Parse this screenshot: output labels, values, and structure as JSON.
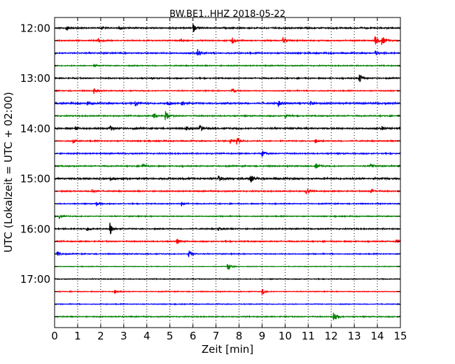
{
  "chart_data": {
    "type": "line",
    "title": "BW.BE1..HHZ 2018-05-22",
    "xlabel": "Zeit  [min]",
    "ylabel": "UTC (Lokalzeit = UTC + 02:00)",
    "xlim": [
      0,
      15
    ],
    "xticks": [
      "0",
      "1",
      "2",
      "3",
      "4",
      "5",
      "6",
      "7",
      "8",
      "9",
      "10",
      "11",
      "12",
      "13",
      "14",
      "15"
    ],
    "ytick_labels": [
      "12:00",
      "13:00",
      "14:00",
      "15:00",
      "16:00",
      "17:00"
    ],
    "grid": {
      "vertical_dotted": true,
      "every_minutes": 1
    },
    "colors": [
      "#000000",
      "#ff0000",
      "#0000ff",
      "#008000"
    ],
    "traces": [
      {
        "start": "12:00",
        "color": "#000000",
        "noise": 0.7,
        "events": [
          {
            "t": 0.5,
            "amp": 3
          },
          {
            "t": 2.0,
            "amp": 2.5
          },
          {
            "t": 2.8,
            "amp": 2.5
          },
          {
            "t": 6.0,
            "amp": 6
          }
        ]
      },
      {
        "start": "12:15",
        "color": "#ff0000",
        "noise": 0.6,
        "events": [
          {
            "t": 1.9,
            "amp": 4
          },
          {
            "t": 5.5,
            "amp": 3
          },
          {
            "t": 7.7,
            "amp": 5
          },
          {
            "t": 9.9,
            "amp": 5
          },
          {
            "t": 13.9,
            "amp": 7
          },
          {
            "t": 14.2,
            "amp": 7
          }
        ]
      },
      {
        "start": "12:30",
        "color": "#0000ff",
        "noise": 0.7,
        "events": [
          {
            "t": 6.2,
            "amp": 6
          },
          {
            "t": 13.9,
            "amp": 4
          }
        ]
      },
      {
        "start": "12:45",
        "color": "#008000",
        "noise": 0.5,
        "events": [
          {
            "t": 1.7,
            "amp": 2
          }
        ]
      },
      {
        "start": "13:00",
        "color": "#000000",
        "noise": 0.6,
        "events": [
          {
            "t": 13.2,
            "amp": 8
          }
        ]
      },
      {
        "start": "13:15",
        "color": "#ff0000",
        "noise": 0.5,
        "events": [
          {
            "t": 1.7,
            "amp": 5
          },
          {
            "t": 7.7,
            "amp": 4
          }
        ]
      },
      {
        "start": "13:30",
        "color": "#0000ff",
        "noise": 0.8,
        "events": [
          {
            "t": 1.4,
            "amp": 3
          },
          {
            "t": 3.5,
            "amp": 5
          },
          {
            "t": 4.9,
            "amp": 5
          },
          {
            "t": 5.5,
            "amp": 4
          },
          {
            "t": 9.7,
            "amp": 4
          },
          {
            "t": 11.1,
            "amp": 4
          }
        ]
      },
      {
        "start": "13:45",
        "color": "#008000",
        "noise": 0.6,
        "events": [
          {
            "t": 4.3,
            "amp": 4
          },
          {
            "t": 4.8,
            "amp": 8
          },
          {
            "t": 10.0,
            "amp": 3
          }
        ]
      },
      {
        "start": "14:00",
        "color": "#000000",
        "noise": 0.8,
        "events": [
          {
            "t": 0.9,
            "amp": 3
          },
          {
            "t": 2.4,
            "amp": 4
          },
          {
            "t": 5.7,
            "amp": 3
          },
          {
            "t": 6.3,
            "amp": 6
          },
          {
            "t": 14.2,
            "amp": 3
          }
        ]
      },
      {
        "start": "14:15",
        "color": "#ff0000",
        "noise": 0.6,
        "events": [
          {
            "t": 0.8,
            "amp": 3
          },
          {
            "t": 7.6,
            "amp": 4
          },
          {
            "t": 7.9,
            "amp": 6
          },
          {
            "t": 11.3,
            "amp": 3
          }
        ]
      },
      {
        "start": "14:30",
        "color": "#0000ff",
        "noise": 0.6,
        "events": [
          {
            "t": 9.0,
            "amp": 5
          }
        ]
      },
      {
        "start": "14:45",
        "color": "#008000",
        "noise": 0.6,
        "events": [
          {
            "t": 3.8,
            "amp": 3
          },
          {
            "t": 11.3,
            "amp": 5
          },
          {
            "t": 13.7,
            "amp": 4
          }
        ]
      },
      {
        "start": "15:00",
        "color": "#000000",
        "noise": 0.9,
        "events": [
          {
            "t": 2.4,
            "amp": 3
          },
          {
            "t": 7.1,
            "amp": 4
          },
          {
            "t": 8.5,
            "amp": 6
          }
        ]
      },
      {
        "start": "15:15",
        "color": "#ff0000",
        "noise": 0.6,
        "events": [
          {
            "t": 1.6,
            "amp": 4
          },
          {
            "t": 10.9,
            "amp": 4
          },
          {
            "t": 13.7,
            "amp": 4
          }
        ]
      },
      {
        "start": "15:30",
        "color": "#0000ff",
        "noise": 0.5,
        "events": [
          {
            "t": 1.8,
            "amp": 3
          },
          {
            "t": 5.5,
            "amp": 3
          }
        ]
      },
      {
        "start": "15:45",
        "color": "#008000",
        "noise": 0.5,
        "events": [
          {
            "t": 0.2,
            "amp": 3
          }
        ]
      },
      {
        "start": "16:00",
        "color": "#000000",
        "noise": 0.6,
        "events": [
          {
            "t": 1.4,
            "amp": 3
          },
          {
            "t": 2.4,
            "amp": 10
          },
          {
            "t": 7.1,
            "amp": 3
          }
        ]
      },
      {
        "start": "16:15",
        "color": "#ff0000",
        "noise": 0.6,
        "events": [
          {
            "t": 5.3,
            "amp": 4
          },
          {
            "t": 14.8,
            "amp": 3
          }
        ]
      },
      {
        "start": "16:30",
        "color": "#0000ff",
        "noise": 0.5,
        "events": [
          {
            "t": 0.1,
            "amp": 5
          },
          {
            "t": 5.8,
            "amp": 6
          }
        ]
      },
      {
        "start": "16:45",
        "color": "#008000",
        "noise": 0.3,
        "events": [
          {
            "t": 7.5,
            "amp": 6
          }
        ]
      },
      {
        "start": "17:00",
        "color": "#000000",
        "noise": 0.4,
        "events": []
      },
      {
        "start": "17:15",
        "color": "#ff0000",
        "noise": 0.4,
        "events": [
          {
            "t": 2.6,
            "amp": 3
          },
          {
            "t": 9.0,
            "amp": 5
          }
        ]
      },
      {
        "start": "17:30",
        "color": "#0000ff",
        "noise": 0.4,
        "events": []
      },
      {
        "start": "17:45",
        "color": "#008000",
        "noise": 0.5,
        "events": [
          {
            "t": 12.1,
            "amp": 9
          }
        ]
      }
    ]
  }
}
